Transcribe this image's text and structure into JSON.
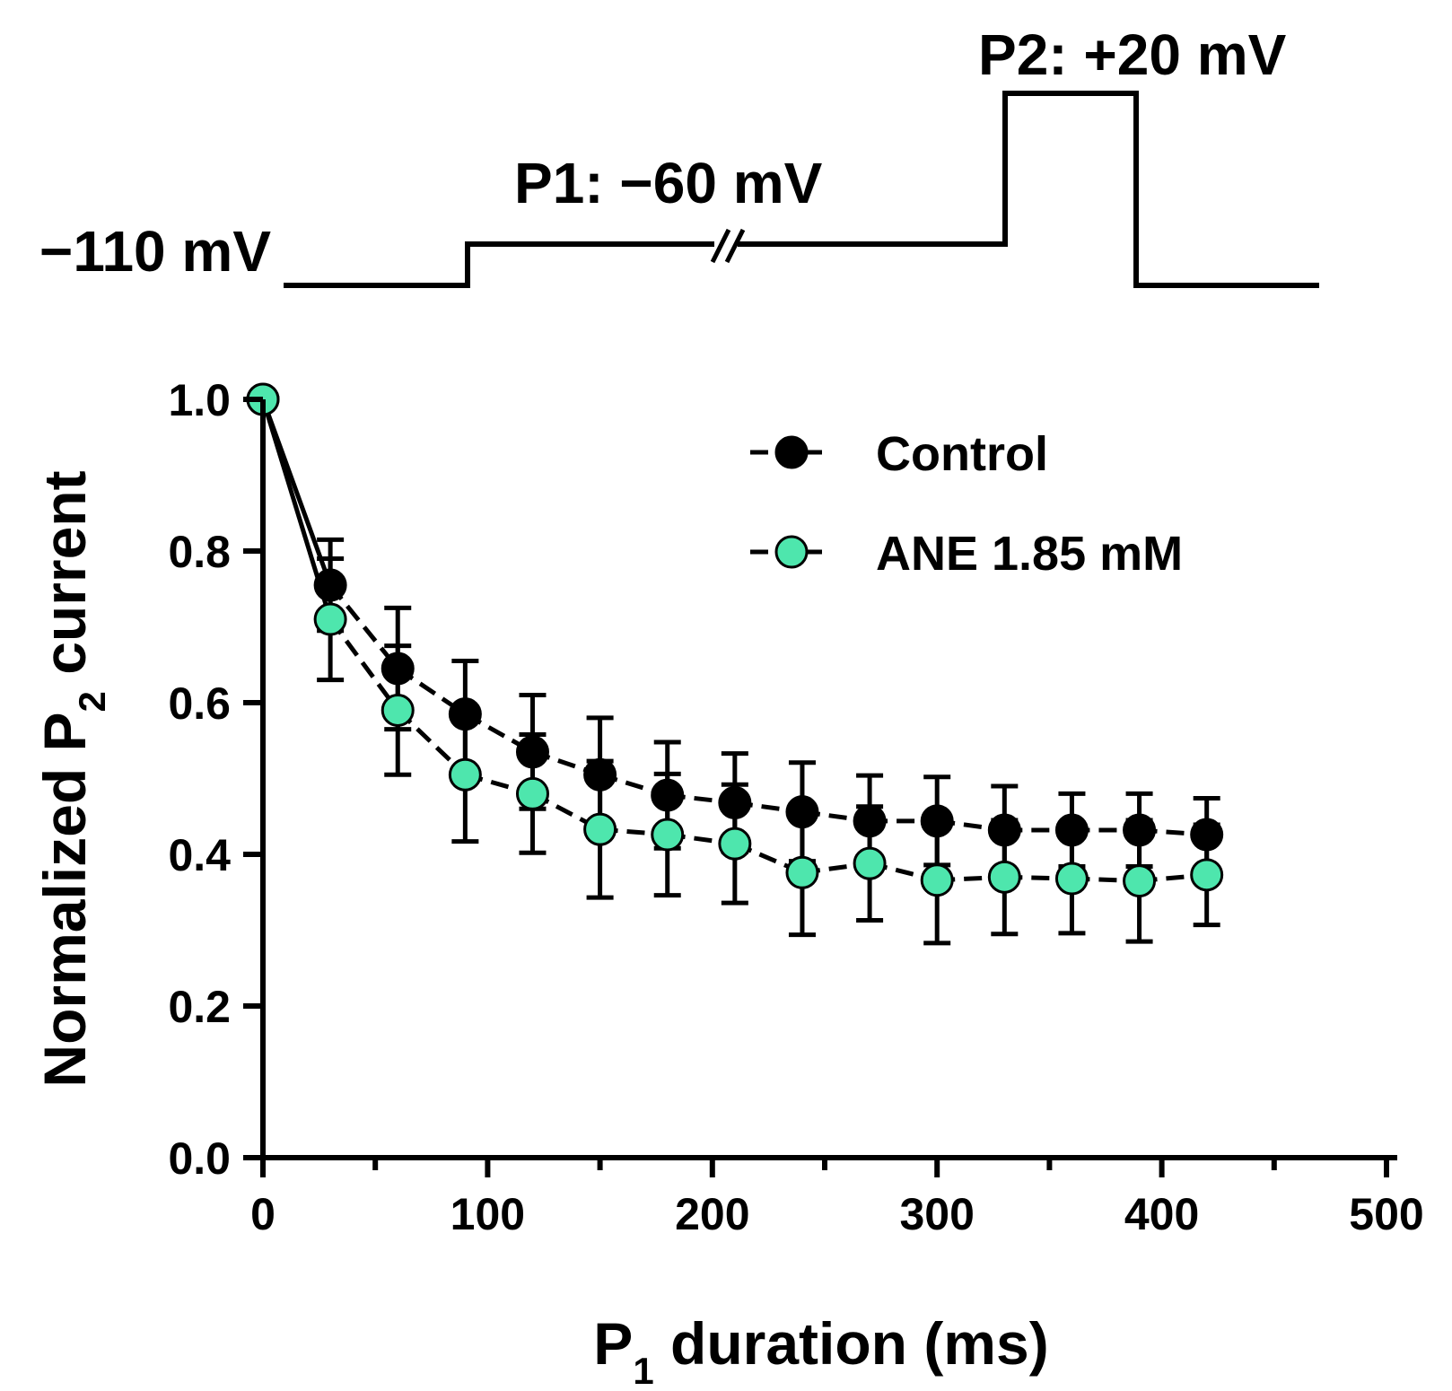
{
  "protocol": {
    "holding_label": "−110 mV",
    "p1_label": "P1: −60 mV",
    "p2_label": "P2: +20 mV"
  },
  "chart_data": {
    "type": "scatter",
    "title": "",
    "xlabel_main": "P",
    "xlabel_sub": "1",
    "xlabel_rest": " duration (ms)",
    "ylabel_main": "Normalized P",
    "ylabel_sub": "2",
    "ylabel_rest": " current",
    "xlim": [
      0,
      500
    ],
    "ylim": [
      0,
      1
    ],
    "x_ticks": [
      0,
      100,
      200,
      300,
      400,
      500
    ],
    "x_tick_labels": [
      "0",
      "100",
      "200",
      "300",
      "400",
      "500"
    ],
    "y_ticks": [
      0,
      0.2,
      0.4,
      0.6,
      0.8,
      1.0
    ],
    "y_tick_labels": [
      "0.0",
      "0.2",
      "0.4",
      "0.6",
      "0.8",
      "1.0"
    ],
    "legend_position": "top-right",
    "series": [
      {
        "name": "Control",
        "color": "#000000",
        "marker_fill": "#000000",
        "x": [
          0,
          30,
          60,
          90,
          120,
          150,
          180,
          210,
          240,
          270,
          300,
          330,
          360,
          390,
          420
        ],
        "y": [
          1.0,
          0.755,
          0.645,
          0.585,
          0.535,
          0.505,
          0.478,
          0.468,
          0.456,
          0.444,
          0.444,
          0.432,
          0.432,
          0.432,
          0.426
        ],
        "err": [
          0,
          0.06,
          0.08,
          0.07,
          0.075,
          0.075,
          0.07,
          0.065,
          0.065,
          0.06,
          0.058,
          0.058,
          0.048,
          0.048,
          0.048
        ]
      },
      {
        "name": "ANE 1.85 mM",
        "color": "#000000",
        "marker_fill": "#4ee6ad",
        "x": [
          0,
          30,
          60,
          90,
          120,
          150,
          180,
          210,
          240,
          270,
          300,
          330,
          360,
          390,
          420
        ],
        "y": [
          1.0,
          0.71,
          0.59,
          0.505,
          0.48,
          0.433,
          0.426,
          0.414,
          0.376,
          0.388,
          0.366,
          0.37,
          0.368,
          0.365,
          0.373
        ],
        "err": [
          0,
          0.08,
          0.085,
          0.088,
          0.078,
          0.09,
          0.08,
          0.078,
          0.082,
          0.075,
          0.083,
          0.075,
          0.072,
          0.08,
          0.066
        ]
      }
    ]
  }
}
